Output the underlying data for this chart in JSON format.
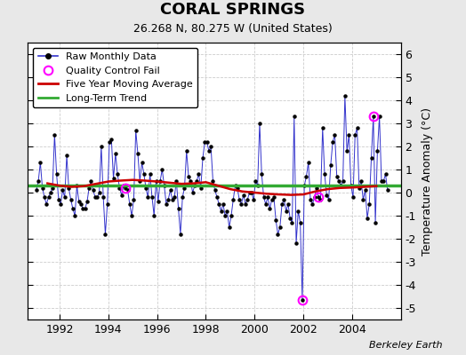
{
  "title": "CORAL SPRINGS",
  "subtitle": "26.268 N, 80.275 W (United States)",
  "ylabel": "Temperature Anomaly (°C)",
  "watermark": "Berkeley Earth",
  "xlim": [
    1990.7,
    2006.0
  ],
  "ylim": [
    -5.5,
    6.5
  ],
  "yticks": [
    -5,
    -4,
    -3,
    -2,
    -1,
    0,
    1,
    2,
    3,
    4,
    5,
    6
  ],
  "xticks": [
    1992,
    1994,
    1996,
    1998,
    2000,
    2002,
    2004
  ],
  "bg_color": "#e8e8e8",
  "plot_bg_color": "#ffffff",
  "raw_color": "#3333cc",
  "ma_color": "#cc0000",
  "trend_color": "#33aa33",
  "qc_color": "magenta",
  "trend_y": 0.3,
  "raw_monthly": [
    [
      1991.042,
      0.1
    ],
    [
      1991.125,
      0.5
    ],
    [
      1991.208,
      1.3
    ],
    [
      1991.292,
      0.2
    ],
    [
      1991.375,
      -0.2
    ],
    [
      1991.458,
      -0.5
    ],
    [
      1991.542,
      -0.2
    ],
    [
      1991.625,
      0.0
    ],
    [
      1991.708,
      0.2
    ],
    [
      1991.792,
      2.5
    ],
    [
      1991.875,
      0.8
    ],
    [
      1991.958,
      -0.3
    ],
    [
      1992.042,
      -0.5
    ],
    [
      1992.125,
      0.1
    ],
    [
      1992.208,
      -0.2
    ],
    [
      1992.292,
      1.6
    ],
    [
      1992.375,
      0.2
    ],
    [
      1992.458,
      -0.3
    ],
    [
      1992.542,
      -0.7
    ],
    [
      1992.625,
      -1.0
    ],
    [
      1992.708,
      0.3
    ],
    [
      1992.792,
      -0.4
    ],
    [
      1992.875,
      -0.5
    ],
    [
      1992.958,
      -0.7
    ],
    [
      1993.042,
      -0.7
    ],
    [
      1993.125,
      -0.4
    ],
    [
      1993.208,
      0.2
    ],
    [
      1993.292,
      0.5
    ],
    [
      1993.375,
      0.1
    ],
    [
      1993.458,
      -0.2
    ],
    [
      1993.542,
      -0.2
    ],
    [
      1993.625,
      0.0
    ],
    [
      1993.708,
      2.0
    ],
    [
      1993.792,
      -0.2
    ],
    [
      1993.875,
      -1.8
    ],
    [
      1993.958,
      -0.5
    ],
    [
      1994.042,
      2.2
    ],
    [
      1994.125,
      2.3
    ],
    [
      1994.208,
      0.6
    ],
    [
      1994.292,
      1.7
    ],
    [
      1994.375,
      0.8
    ],
    [
      1994.458,
      0.2
    ],
    [
      1994.542,
      -0.1
    ],
    [
      1994.625,
      0.3
    ],
    [
      1994.708,
      0.2
    ],
    [
      1994.792,
      0.1
    ],
    [
      1994.875,
      -0.5
    ],
    [
      1994.958,
      -1.0
    ],
    [
      1995.042,
      -0.3
    ],
    [
      1995.125,
      2.7
    ],
    [
      1995.208,
      1.7
    ],
    [
      1995.292,
      0.5
    ],
    [
      1995.375,
      1.3
    ],
    [
      1995.458,
      0.8
    ],
    [
      1995.542,
      0.2
    ],
    [
      1995.625,
      -0.2
    ],
    [
      1995.708,
      0.8
    ],
    [
      1995.792,
      -0.2
    ],
    [
      1995.875,
      -1.0
    ],
    [
      1995.958,
      0.5
    ],
    [
      1996.042,
      -0.4
    ],
    [
      1996.125,
      0.5
    ],
    [
      1996.208,
      1.0
    ],
    [
      1996.292,
      0.3
    ],
    [
      1996.375,
      -0.5
    ],
    [
      1996.458,
      -0.3
    ],
    [
      1996.542,
      0.1
    ],
    [
      1996.625,
      -0.3
    ],
    [
      1996.708,
      -0.2
    ],
    [
      1996.792,
      0.5
    ],
    [
      1996.875,
      -0.7
    ],
    [
      1996.958,
      -1.8
    ],
    [
      1997.042,
      -0.2
    ],
    [
      1997.125,
      0.2
    ],
    [
      1997.208,
      1.8
    ],
    [
      1997.292,
      0.7
    ],
    [
      1997.375,
      0.5
    ],
    [
      1997.458,
      0.0
    ],
    [
      1997.542,
      0.3
    ],
    [
      1997.625,
      0.5
    ],
    [
      1997.708,
      0.8
    ],
    [
      1997.792,
      0.2
    ],
    [
      1997.875,
      1.5
    ],
    [
      1997.958,
      2.2
    ],
    [
      1998.042,
      2.2
    ],
    [
      1998.125,
      1.8
    ],
    [
      1998.208,
      2.0
    ],
    [
      1998.292,
      0.5
    ],
    [
      1998.375,
      0.1
    ],
    [
      1998.458,
      -0.2
    ],
    [
      1998.542,
      -0.5
    ],
    [
      1998.625,
      -0.8
    ],
    [
      1998.708,
      -0.5
    ],
    [
      1998.792,
      -1.0
    ],
    [
      1998.875,
      -0.8
    ],
    [
      1998.958,
      -1.5
    ],
    [
      1999.042,
      -1.0
    ],
    [
      1999.125,
      -0.3
    ],
    [
      1999.208,
      0.3
    ],
    [
      1999.292,
      0.2
    ],
    [
      1999.375,
      -0.3
    ],
    [
      1999.458,
      -0.5
    ],
    [
      1999.542,
      -0.1
    ],
    [
      1999.625,
      -0.5
    ],
    [
      1999.708,
      -0.3
    ],
    [
      1999.792,
      0.0
    ],
    [
      1999.875,
      0.0
    ],
    [
      1999.958,
      -0.3
    ],
    [
      2000.042,
      0.5
    ],
    [
      2000.125,
      0.3
    ],
    [
      2000.208,
      3.0
    ],
    [
      2000.292,
      0.8
    ],
    [
      2000.375,
      -0.2
    ],
    [
      2000.458,
      -0.5
    ],
    [
      2000.542,
      -0.2
    ],
    [
      2000.625,
      -0.7
    ],
    [
      2000.708,
      -0.3
    ],
    [
      2000.792,
      -0.2
    ],
    [
      2000.875,
      -1.2
    ],
    [
      2000.958,
      -1.8
    ],
    [
      2001.042,
      -1.5
    ],
    [
      2001.125,
      -0.5
    ],
    [
      2001.208,
      -0.3
    ],
    [
      2001.292,
      -0.8
    ],
    [
      2001.375,
      -0.5
    ],
    [
      2001.458,
      -1.1
    ],
    [
      2001.542,
      -1.3
    ],
    [
      2001.625,
      3.3
    ],
    [
      2001.708,
      -2.2
    ],
    [
      2001.792,
      -0.8
    ],
    [
      2001.875,
      -1.3
    ],
    [
      2001.958,
      -4.65
    ],
    [
      2002.042,
      0.3
    ],
    [
      2002.125,
      0.7
    ],
    [
      2002.208,
      1.3
    ],
    [
      2002.292,
      -0.3
    ],
    [
      2002.375,
      -0.5
    ],
    [
      2002.458,
      -0.2
    ],
    [
      2002.542,
      0.2
    ],
    [
      2002.625,
      -0.2
    ],
    [
      2002.708,
      -0.3
    ],
    [
      2002.792,
      2.8
    ],
    [
      2002.875,
      0.8
    ],
    [
      2002.958,
      -0.1
    ],
    [
      2003.042,
      -0.3
    ],
    [
      2003.125,
      1.2
    ],
    [
      2003.208,
      2.2
    ],
    [
      2003.292,
      2.5
    ],
    [
      2003.375,
      0.7
    ],
    [
      2003.458,
      0.5
    ],
    [
      2003.542,
      0.3
    ],
    [
      2003.625,
      0.5
    ],
    [
      2003.708,
      4.2
    ],
    [
      2003.792,
      1.8
    ],
    [
      2003.875,
      2.5
    ],
    [
      2003.958,
      0.3
    ],
    [
      2004.042,
      -0.2
    ],
    [
      2004.125,
      2.5
    ],
    [
      2004.208,
      2.8
    ],
    [
      2004.292,
      0.2
    ],
    [
      2004.375,
      0.5
    ],
    [
      2004.458,
      -0.3
    ],
    [
      2004.542,
      0.1
    ],
    [
      2004.625,
      -1.1
    ],
    [
      2004.708,
      -0.5
    ],
    [
      2004.792,
      1.5
    ],
    [
      2004.875,
      3.3
    ],
    [
      2004.958,
      -1.3
    ],
    [
      2005.042,
      1.8
    ],
    [
      2005.125,
      3.3
    ],
    [
      2005.208,
      0.5
    ],
    [
      2005.292,
      0.5
    ],
    [
      2005.375,
      0.8
    ],
    [
      2005.458,
      0.1
    ]
  ],
  "qc_fail_points": [
    [
      1994.708,
      0.2
    ],
    [
      2001.958,
      -4.65
    ],
    [
      2002.625,
      -0.2
    ],
    [
      2004.875,
      3.3
    ]
  ],
  "moving_avg": [
    [
      1991.5,
      0.4
    ],
    [
      1992.0,
      0.3
    ],
    [
      1992.5,
      0.25
    ],
    [
      1993.0,
      0.28
    ],
    [
      1993.5,
      0.38
    ],
    [
      1994.0,
      0.48
    ],
    [
      1994.5,
      0.52
    ],
    [
      1995.0,
      0.55
    ],
    [
      1995.5,
      0.52
    ],
    [
      1996.0,
      0.48
    ],
    [
      1996.5,
      0.43
    ],
    [
      1997.0,
      0.38
    ],
    [
      1997.5,
      0.4
    ],
    [
      1998.0,
      0.45
    ],
    [
      1998.5,
      0.3
    ],
    [
      1999.0,
      0.15
    ],
    [
      1999.5,
      0.05
    ],
    [
      2000.0,
      0.0
    ],
    [
      2000.5,
      -0.05
    ],
    [
      2001.0,
      -0.08
    ],
    [
      2001.5,
      -0.1
    ],
    [
      2002.0,
      -0.08
    ],
    [
      2002.5,
      0.05
    ],
    [
      2003.0,
      0.15
    ],
    [
      2003.5,
      0.2
    ],
    [
      2004.0,
      0.22
    ],
    [
      2004.5,
      0.25
    ],
    [
      2005.0,
      0.28
    ]
  ]
}
